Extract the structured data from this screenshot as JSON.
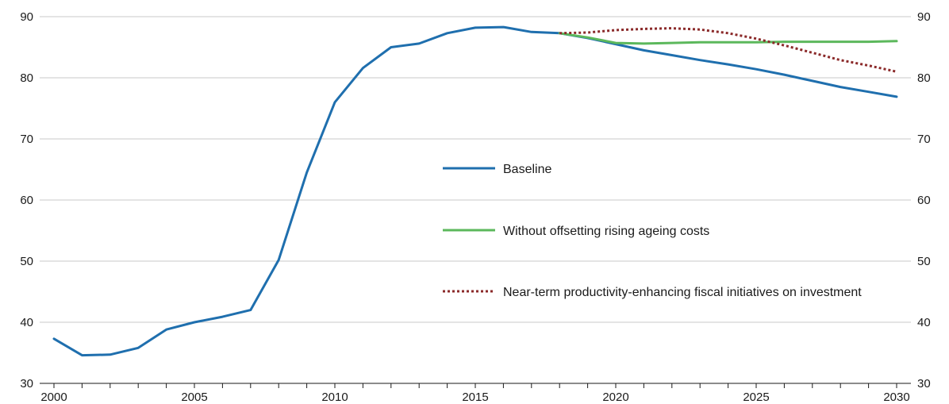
{
  "chart_data": {
    "type": "line",
    "title": "",
    "xlabel": "",
    "ylabel": "",
    "xlim": [
      2000,
      2030
    ],
    "ylim": [
      30,
      90
    ],
    "y_ticks": [
      30,
      40,
      50,
      60,
      70,
      80,
      90
    ],
    "y_tick_labels": [
      "30",
      "40",
      "50",
      "60",
      "70",
      "80",
      "90"
    ],
    "x_ticks": [
      2000,
      2005,
      2010,
      2015,
      2020,
      2025,
      2030
    ],
    "x_tick_labels": [
      "2000",
      "2005",
      "2010",
      "2015",
      "2020",
      "2025",
      "2030"
    ],
    "right_axis_mirrors_left": true,
    "grid": "horizontal",
    "legend_position": "center",
    "series": [
      {
        "name": "Baseline",
        "color": "#1f6fae",
        "style": "solid",
        "x": [
          2000,
          2001,
          2002,
          2003,
          2004,
          2005,
          2006,
          2007,
          2008,
          2009,
          2010,
          2011,
          2012,
          2013,
          2014,
          2015,
          2016,
          2017,
          2018,
          2019,
          2020,
          2021,
          2022,
          2023,
          2024,
          2025,
          2026,
          2027,
          2028,
          2029,
          2030
        ],
        "values": [
          37.3,
          34.6,
          34.7,
          35.8,
          38.8,
          40.0,
          40.9,
          42.0,
          50.2,
          64.5,
          76.0,
          81.6,
          85.0,
          85.6,
          87.3,
          88.2,
          88.3,
          87.5,
          87.3,
          86.5,
          85.5,
          84.5,
          83.7,
          82.9,
          82.2,
          81.4,
          80.5,
          79.5,
          78.5,
          77.7,
          76.9
        ]
      },
      {
        "name": "Without offsetting rising ageing costs",
        "color": "#5cb85c",
        "style": "solid",
        "x": [
          2018,
          2019,
          2020,
          2021,
          2022,
          2023,
          2024,
          2025,
          2026,
          2027,
          2028,
          2029,
          2030
        ],
        "values": [
          87.3,
          86.6,
          85.7,
          85.6,
          85.7,
          85.8,
          85.8,
          85.8,
          85.9,
          85.9,
          85.9,
          85.9,
          86.0
        ]
      },
      {
        "name": "Near-term productivity-enhancing fiscal initiatives on investment",
        "color": "#8b2a2a",
        "style": "dotted",
        "x": [
          2018,
          2019,
          2020,
          2021,
          2022,
          2023,
          2024,
          2025,
          2026,
          2027,
          2028,
          2029,
          2030
        ],
        "values": [
          87.3,
          87.4,
          87.8,
          88.0,
          88.1,
          87.9,
          87.3,
          86.4,
          85.3,
          84.1,
          82.9,
          82.0,
          81.0
        ]
      }
    ]
  }
}
